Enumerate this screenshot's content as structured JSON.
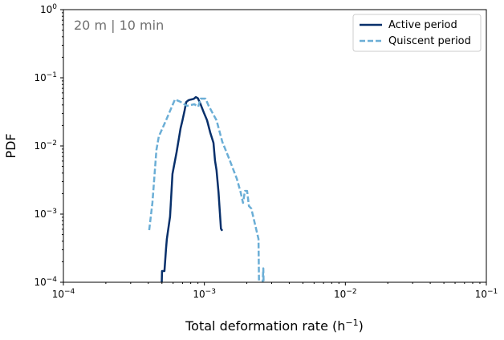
{
  "chart_data": {
    "type": "line",
    "title": "",
    "annotation": "20 m | 10 min",
    "xlabel": "Total deformation rate (h",
    "xlabel_sup": "−1",
    "xlabel_end": ")",
    "ylabel": "PDF",
    "xscale": "log",
    "yscale": "log",
    "xlim": [
      0.0001,
      0.1
    ],
    "ylim": [
      0.0001,
      1
    ],
    "grid": false,
    "legend_placement": "top-right",
    "x_ticks": [
      {
        "base": "10",
        "exp": "−4",
        "value": 0.0001
      },
      {
        "base": "10",
        "exp": "−3",
        "value": 0.001
      },
      {
        "base": "10",
        "exp": "−2",
        "value": 0.01
      },
      {
        "base": "10",
        "exp": "−1",
        "value": 0.1
      }
    ],
    "y_ticks": [
      {
        "base": "10",
        "exp": "−4",
        "value": 0.0001
      },
      {
        "base": "10",
        "exp": "−3",
        "value": 0.001
      },
      {
        "base": "10",
        "exp": "−2",
        "value": 0.01
      },
      {
        "base": "10",
        "exp": "−1",
        "value": 0.1
      },
      {
        "base": "10",
        "exp": "0",
        "value": 1
      }
    ],
    "series": [
      {
        "name": "Active period",
        "color": "#08306b",
        "style": "solid",
        "x": [
          0.000494,
          0.000501,
          0.000521,
          0.000535,
          0.000542,
          0.000571,
          0.000594,
          0.000635,
          0.000678,
          0.000695,
          0.000724,
          0.000743,
          0.000773,
          0.000804,
          0.00084,
          0.00087,
          0.0009,
          0.00094,
          0.00099,
          0.001045,
          0.0011,
          0.00116,
          0.00119,
          0.00122,
          0.00126,
          0.00131,
          0.00134
        ],
        "y": [
          5e-05,
          0.000146,
          0.000146,
          0.000312,
          0.000432,
          0.00092,
          0.00388,
          0.00805,
          0.0182,
          0.0225,
          0.033,
          0.044,
          0.047,
          0.048,
          0.049,
          0.052,
          0.05,
          0.041,
          0.031,
          0.0238,
          0.0158,
          0.0111,
          0.0061,
          0.0044,
          0.00208,
          0.00061,
          0.00057
        ]
      },
      {
        "name": "Quiscent period",
        "color": "#6baed6",
        "style": "dashed",
        "x": [
          0.000406,
          0.000428,
          0.000457,
          0.000475,
          0.000535,
          0.000618,
          0.000678,
          0.000753,
          0.000848,
          0.000904,
          0.00094,
          0.001019,
          0.001072,
          0.00122,
          0.00134,
          0.00149,
          0.0017,
          0.00181,
          0.00188,
          0.00194,
          0.00201,
          0.00207,
          0.00215,
          0.00242,
          0.00245,
          0.00255,
          0.00262,
          0.00265
        ],
        "y": [
          0.000582,
          0.00146,
          0.00873,
          0.0138,
          0.0238,
          0.0481,
          0.0444,
          0.0387,
          0.0409,
          0.0377,
          0.0494,
          0.0494,
          0.0387,
          0.0238,
          0.0115,
          0.00667,
          0.0033,
          0.00208,
          0.00146,
          0.00219,
          0.00219,
          0.00131,
          0.00121,
          0.000432,
          5e-05,
          5e-05,
          0.00016,
          5e-05
        ]
      }
    ]
  }
}
